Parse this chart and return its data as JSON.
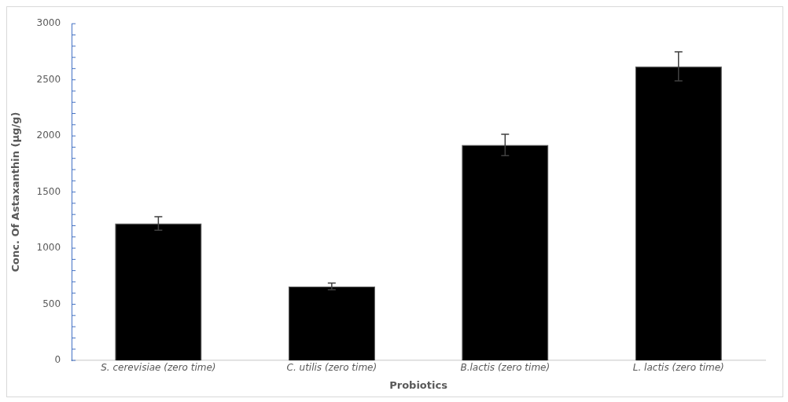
{
  "chart_data": {
    "type": "bar",
    "xlabel": "Probiotics",
    "ylabel": "Conc. Of Astaxanthin (µg/g)",
    "categories": [
      "S. cerevisiae (zero time)",
      "C. utilis (zero time)",
      "B.lactis (zero time)",
      "L. lactis (zero time)"
    ],
    "values": [
      1220,
      660,
      1920,
      2620
    ],
    "errors": [
      60,
      30,
      95,
      130
    ],
    "color": "#000000",
    "ylim": [
      0,
      3000
    ],
    "yticks": [
      0,
      500,
      1000,
      1500,
      2000,
      2500,
      3000
    ],
    "grid": false,
    "legend": false
  }
}
